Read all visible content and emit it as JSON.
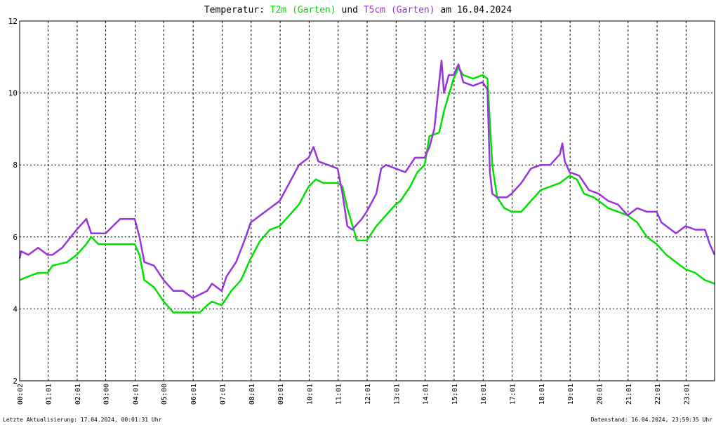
{
  "chart_data": {
    "type": "line",
    "title": {
      "prefix": "Temperatur: ",
      "series1": "T2m (Garten)",
      "middle": " und ",
      "series2": "T5cm (Garten)",
      "suffix": " am 16.04.2024"
    },
    "xlabel": "",
    "ylabel": "",
    "ylim": [
      2,
      12
    ],
    "xlim": [
      "00:02",
      "24:00"
    ],
    "yticks": [
      "2",
      "4",
      "6",
      "8",
      "10",
      "12"
    ],
    "xticks": [
      "00:02",
      "01:01",
      "02:01",
      "03:00",
      "04:01",
      "05:00",
      "06:01",
      "07:01",
      "08:01",
      "09:01",
      "10:01",
      "11:01",
      "12:01",
      "13:01",
      "14:01",
      "15:01",
      "16:01",
      "17:01",
      "18:01",
      "19:01",
      "20:01",
      "21:01",
      "22:01",
      "23:01"
    ],
    "grid": true,
    "legend": "in title",
    "colors": {
      "T2m": "#00e000",
      "T5cm": "#9933dd"
    },
    "series": [
      {
        "name": "T2m (Garten)",
        "color": "#00e000",
        "points": [
          [
            "00:02",
            4.8
          ],
          [
            "00:20",
            4.9
          ],
          [
            "00:40",
            5.0
          ],
          [
            "01:00",
            5.0
          ],
          [
            "01:10",
            5.2
          ],
          [
            "01:40",
            5.3
          ],
          [
            "02:00",
            5.5
          ],
          [
            "02:20",
            5.8
          ],
          [
            "02:30",
            6.0
          ],
          [
            "02:45",
            5.8
          ],
          [
            "03:00",
            5.8
          ],
          [
            "03:30",
            5.8
          ],
          [
            "04:00",
            5.8
          ],
          [
            "04:10",
            5.5
          ],
          [
            "04:20",
            4.8
          ],
          [
            "04:40",
            4.6
          ],
          [
            "05:00",
            4.2
          ],
          [
            "05:20",
            3.9
          ],
          [
            "05:40",
            3.9
          ],
          [
            "06:00",
            3.9
          ],
          [
            "06:15",
            3.9
          ],
          [
            "06:30",
            4.1
          ],
          [
            "06:40",
            4.2
          ],
          [
            "07:00",
            4.1
          ],
          [
            "07:20",
            4.5
          ],
          [
            "07:40",
            4.8
          ],
          [
            "08:00",
            5.4
          ],
          [
            "08:20",
            5.9
          ],
          [
            "08:40",
            6.2
          ],
          [
            "09:00",
            6.3
          ],
          [
            "09:20",
            6.6
          ],
          [
            "09:40",
            6.9
          ],
          [
            "10:00",
            7.4
          ],
          [
            "10:15",
            7.6
          ],
          [
            "10:30",
            7.5
          ],
          [
            "11:00",
            7.5
          ],
          [
            "11:10",
            7.4
          ],
          [
            "11:20",
            6.8
          ],
          [
            "11:40",
            5.9
          ],
          [
            "12:00",
            5.9
          ],
          [
            "12:20",
            6.3
          ],
          [
            "12:40",
            6.6
          ],
          [
            "13:00",
            6.9
          ],
          [
            "13:10",
            7.0
          ],
          [
            "13:30",
            7.4
          ],
          [
            "13:45",
            7.8
          ],
          [
            "14:00",
            8.0
          ],
          [
            "14:10",
            8.8
          ],
          [
            "14:30",
            8.9
          ],
          [
            "14:40",
            9.5
          ],
          [
            "15:00",
            10.4
          ],
          [
            "15:10",
            10.7
          ],
          [
            "15:20",
            10.5
          ],
          [
            "15:40",
            10.4
          ],
          [
            "16:00",
            10.5
          ],
          [
            "16:10",
            10.4
          ],
          [
            "16:20",
            8.0
          ],
          [
            "16:30",
            7.1
          ],
          [
            "16:45",
            6.8
          ],
          [
            "17:00",
            6.7
          ],
          [
            "17:20",
            6.7
          ],
          [
            "17:40",
            7.0
          ],
          [
            "18:00",
            7.3
          ],
          [
            "18:20",
            7.4
          ],
          [
            "18:40",
            7.5
          ],
          [
            "19:00",
            7.7
          ],
          [
            "19:15",
            7.6
          ],
          [
            "19:30",
            7.2
          ],
          [
            "19:50",
            7.1
          ],
          [
            "20:00",
            7.0
          ],
          [
            "20:20",
            6.8
          ],
          [
            "20:40",
            6.7
          ],
          [
            "21:00",
            6.6
          ],
          [
            "21:20",
            6.4
          ],
          [
            "21:40",
            6.0
          ],
          [
            "22:00",
            5.8
          ],
          [
            "22:20",
            5.5
          ],
          [
            "22:40",
            5.3
          ],
          [
            "23:00",
            5.1
          ],
          [
            "23:20",
            5.0
          ],
          [
            "23:40",
            4.8
          ],
          [
            "24:00",
            4.7
          ]
        ]
      },
      {
        "name": "T5cm (Garten)",
        "color": "#9933dd",
        "points": [
          [
            "00:02",
            5.4
          ],
          [
            "00:05",
            5.6
          ],
          [
            "00:20",
            5.5
          ],
          [
            "00:40",
            5.7
          ],
          [
            "01:00",
            5.5
          ],
          [
            "01:10",
            5.5
          ],
          [
            "01:30",
            5.7
          ],
          [
            "02:00",
            6.2
          ],
          [
            "02:20",
            6.5
          ],
          [
            "02:30",
            6.1
          ],
          [
            "03:00",
            6.1
          ],
          [
            "03:15",
            6.3
          ],
          [
            "03:30",
            6.5
          ],
          [
            "04:00",
            6.5
          ],
          [
            "04:10",
            6.0
          ],
          [
            "04:20",
            5.3
          ],
          [
            "04:40",
            5.2
          ],
          [
            "05:00",
            4.8
          ],
          [
            "05:20",
            4.5
          ],
          [
            "05:40",
            4.5
          ],
          [
            "06:00",
            4.3
          ],
          [
            "06:15",
            4.4
          ],
          [
            "06:30",
            4.5
          ],
          [
            "06:40",
            4.7
          ],
          [
            "07:00",
            4.5
          ],
          [
            "07:10",
            4.9
          ],
          [
            "07:30",
            5.3
          ],
          [
            "07:50",
            6.0
          ],
          [
            "08:00",
            6.4
          ],
          [
            "08:20",
            6.6
          ],
          [
            "08:40",
            6.8
          ],
          [
            "09:00",
            7.0
          ],
          [
            "09:20",
            7.5
          ],
          [
            "09:40",
            8.0
          ],
          [
            "10:00",
            8.2
          ],
          [
            "10:10",
            8.5
          ],
          [
            "10:20",
            8.1
          ],
          [
            "10:40",
            8.0
          ],
          [
            "11:00",
            7.9
          ],
          [
            "11:10",
            7.2
          ],
          [
            "11:20",
            6.3
          ],
          [
            "11:30",
            6.2
          ],
          [
            "11:50",
            6.5
          ],
          [
            "12:00",
            6.7
          ],
          [
            "12:20",
            7.2
          ],
          [
            "12:30",
            7.9
          ],
          [
            "12:40",
            8.0
          ],
          [
            "13:00",
            7.9
          ],
          [
            "13:20",
            7.8
          ],
          [
            "13:40",
            8.2
          ],
          [
            "14:00",
            8.2
          ],
          [
            "14:10",
            8.5
          ],
          [
            "14:20",
            9.0
          ],
          [
            "14:30",
            10.3
          ],
          [
            "14:35",
            10.9
          ],
          [
            "14:40",
            10.0
          ],
          [
            "14:50",
            10.5
          ],
          [
            "15:00",
            10.5
          ],
          [
            "15:10",
            10.8
          ],
          [
            "15:20",
            10.3
          ],
          [
            "15:40",
            10.2
          ],
          [
            "16:00",
            10.3
          ],
          [
            "16:10",
            10.1
          ],
          [
            "16:15",
            7.8
          ],
          [
            "16:20",
            7.2
          ],
          [
            "16:30",
            7.1
          ],
          [
            "16:50",
            7.1
          ],
          [
            "17:00",
            7.2
          ],
          [
            "17:20",
            7.5
          ],
          [
            "17:40",
            7.9
          ],
          [
            "18:00",
            8.0
          ],
          [
            "18:20",
            8.0
          ],
          [
            "18:40",
            8.3
          ],
          [
            "18:45",
            8.6
          ],
          [
            "18:50",
            8.1
          ],
          [
            "19:00",
            7.8
          ],
          [
            "19:20",
            7.7
          ],
          [
            "19:40",
            7.3
          ],
          [
            "20:00",
            7.2
          ],
          [
            "20:20",
            7.0
          ],
          [
            "20:40",
            6.9
          ],
          [
            "21:00",
            6.6
          ],
          [
            "21:20",
            6.8
          ],
          [
            "21:40",
            6.7
          ],
          [
            "22:00",
            6.7
          ],
          [
            "22:10",
            6.4
          ],
          [
            "22:20",
            6.3
          ],
          [
            "22:40",
            6.1
          ],
          [
            "23:00",
            6.3
          ],
          [
            "23:20",
            6.2
          ],
          [
            "23:40",
            6.2
          ],
          [
            "23:50",
            5.8
          ],
          [
            "24:00",
            5.5
          ]
        ]
      }
    ]
  },
  "footer": {
    "left": "Letzte Aktualisierung: 17.04.2024, 00:01:31 Uhr",
    "right": "Datenstand: 16.04.2024, 23:59:35 Uhr"
  }
}
